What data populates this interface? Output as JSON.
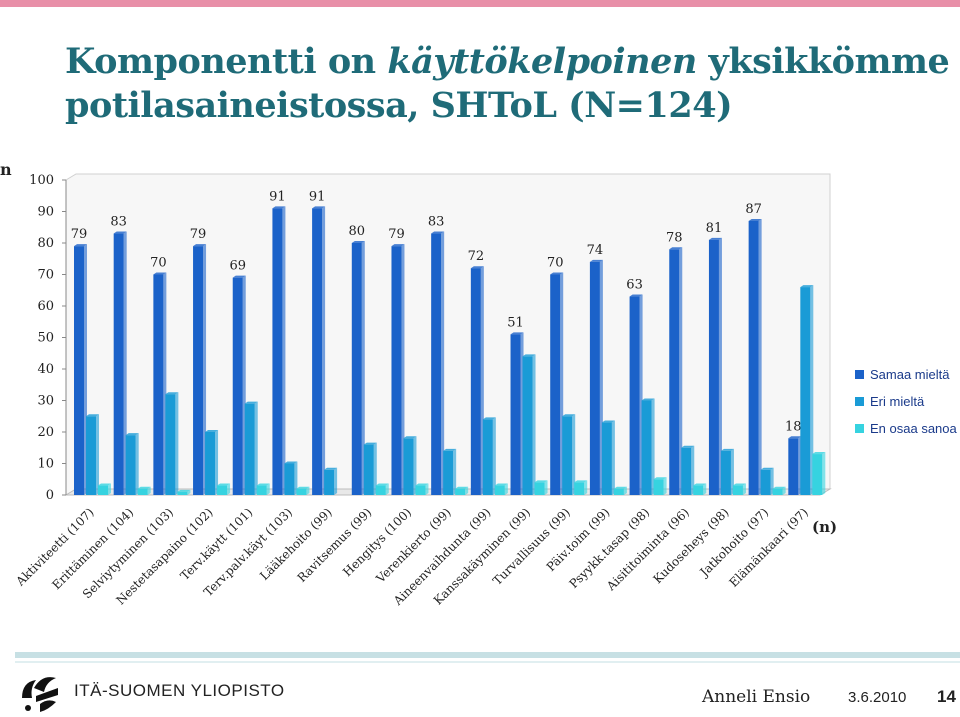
{
  "slide": {
    "title_line1_a": "Komponentti on ",
    "title_line1_b": "käyttökelpoinen",
    "title_line1_c": " yksikkömme",
    "title_line2": "potilasaineistossa, SHToL (N=124)",
    "y_unit_label": "n",
    "x_unit_label": "(n)",
    "logo_text": "ITÄ-SUOMEN YLIOPISTO",
    "author": "Anneli Ensio",
    "date": "3.6.2010",
    "page": "14"
  },
  "colors": {
    "title": "#1f6b78",
    "accent_bar": "#e88fa8",
    "series": [
      "#1b62c9",
      "#1a9bd6",
      "#36d3e0"
    ]
  },
  "chart_data": {
    "type": "bar",
    "ylim": [
      0,
      100
    ],
    "yticks": [
      0,
      10,
      20,
      30,
      40,
      50,
      60,
      70,
      80,
      90,
      100
    ],
    "grid": false,
    "legend_position": "right",
    "categories": [
      "Aktiviteetti (107)",
      "Erittäminen (104)",
      "Selviytyminen (103)",
      "Nestetasapaino (102)",
      "Terv.käytt (101)",
      "Terv.palv.käyt (103)",
      "Lääkehoito (99)",
      "Ravitsemus (99)",
      "Hengitys (100)",
      "Verenkierto (99)",
      "Aineenvaihdunta (99)",
      "Kanssakäyminen (99)",
      "Turvallisuus (99)",
      "Päiv.toim (99)",
      "Psyykk.tasap (98)",
      "Aisititoiminta (96)",
      "Kudoseheys (98)",
      "Jatkohoito (97)",
      "Elämänkaari (97)"
    ],
    "series": [
      {
        "name": "Samaa mieltä",
        "values": [
          79,
          83,
          70,
          79,
          69,
          91,
          91,
          80,
          79,
          83,
          72,
          51,
          70,
          74,
          63,
          78,
          81,
          87,
          18
        ],
        "labels": [
          "79",
          "83",
          "70",
          "79",
          "69",
          "91",
          "91",
          "80",
          "79",
          "83",
          "72",
          "51",
          "70",
          "74",
          "63",
          "78",
          "81",
          "87",
          "18"
        ]
      },
      {
        "name": "Eri mieltä",
        "values": [
          25,
          19,
          32,
          20,
          29,
          10,
          8,
          16,
          18,
          14,
          24,
          44,
          25,
          23,
          30,
          15,
          14,
          8,
          66
        ]
      },
      {
        "name": "En osaa sanoa",
        "values": [
          3,
          2,
          1,
          3,
          3,
          2,
          0,
          3,
          3,
          2,
          3,
          4,
          4,
          2,
          5,
          3,
          3,
          2,
          13
        ]
      }
    ]
  }
}
